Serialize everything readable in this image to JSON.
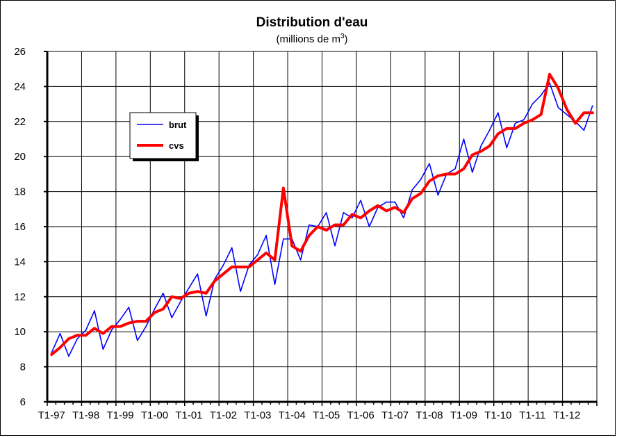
{
  "chart_data": {
    "type": "line",
    "title": "Distribution d'eau",
    "subtitle_prefix": "(millions de m",
    "subtitle_sup": "3",
    "subtitle_suffix": ")",
    "xlabel": "",
    "ylabel": "",
    "ylim": [
      6,
      26
    ],
    "y_ticks": [
      "6",
      "8",
      "10",
      "12",
      "14",
      "16",
      "18",
      "20",
      "22",
      "24",
      "26"
    ],
    "x_tick_labels": [
      "T1-97",
      "T1-98",
      "T1-99",
      "T1-00",
      "T1-01",
      "T1-02",
      "T1-03",
      "T1-04",
      "T1-05",
      "T1-06",
      "T1-07",
      "T1-08",
      "T1-09",
      "T1-10",
      "T1-11",
      "T1-12"
    ],
    "n_quarters": 64,
    "grid": true,
    "legend_position": "upper-left",
    "series": [
      {
        "name": "brut",
        "color": "#0000ff",
        "values": [
          8.8,
          9.9,
          8.6,
          9.6,
          10.1,
          11.2,
          9.0,
          10.1,
          10.7,
          11.4,
          9.5,
          10.3,
          11.3,
          12.2,
          10.8,
          11.7,
          12.5,
          13.3,
          10.9,
          13.0,
          13.8,
          14.8,
          12.3,
          13.8,
          14.4,
          15.5,
          12.7,
          15.3,
          15.3,
          14.1,
          16.1,
          16.0,
          16.8,
          14.9,
          16.8,
          16.5,
          17.5,
          16.0,
          17.1,
          17.4,
          17.4,
          16.5,
          18.1,
          18.7,
          19.6,
          17.8,
          19.0,
          19.3,
          21.0,
          19.1,
          20.6,
          21.5,
          22.5,
          20.5,
          21.9,
          22.1,
          23.0,
          23.5,
          24.2,
          22.8,
          22.4,
          22.0,
          21.5,
          22.9
        ]
      },
      {
        "name": "cvs",
        "color": "#ff0000",
        "values": [
          8.7,
          9.1,
          9.6,
          9.8,
          9.8,
          10.2,
          9.9,
          10.3,
          10.3,
          10.5,
          10.6,
          10.6,
          11.1,
          11.3,
          12.0,
          11.9,
          12.2,
          12.3,
          12.2,
          12.9,
          13.3,
          13.7,
          13.7,
          13.7,
          14.1,
          14.5,
          14.1,
          18.2,
          14.9,
          14.6,
          15.5,
          16.0,
          15.8,
          16.1,
          16.1,
          16.7,
          16.5,
          16.9,
          17.2,
          16.9,
          17.1,
          16.8,
          17.6,
          17.9,
          18.6,
          18.9,
          19.0,
          19.0,
          19.3,
          20.1,
          20.3,
          20.6,
          21.3,
          21.6,
          21.6,
          21.9,
          22.1,
          22.4,
          24.7,
          23.9,
          22.7,
          21.9,
          22.5,
          22.5
        ]
      }
    ]
  }
}
